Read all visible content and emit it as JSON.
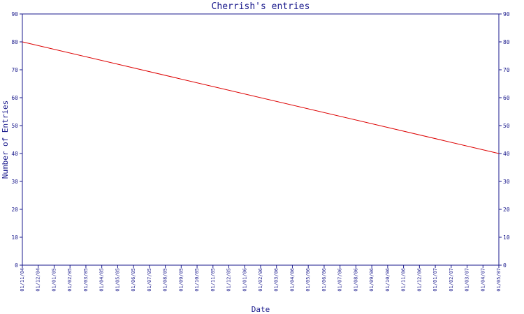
{
  "chart_data": {
    "type": "line",
    "title": "Cherrish's entries",
    "xlabel": "Date",
    "ylabel": "Number of Entries",
    "ylim": [
      0,
      90
    ],
    "y_ticks": [
      0,
      10,
      20,
      30,
      40,
      50,
      60,
      70,
      80,
      90
    ],
    "categories": [
      "01/11/04",
      "01/12/04",
      "01/01/05",
      "01/02/05",
      "01/03/05",
      "01/04/05",
      "01/05/05",
      "01/06/05",
      "01/07/05",
      "01/08/05",
      "01/09/05",
      "01/10/05",
      "01/11/05",
      "01/12/05",
      "01/01/06",
      "01/02/06",
      "01/03/06",
      "01/04/06",
      "01/05/06",
      "01/06/06",
      "01/07/06",
      "01/08/06",
      "01/09/06",
      "01/10/06",
      "01/11/06",
      "01/12/06",
      "01/01/07",
      "01/02/07",
      "01/03/07",
      "01/04/07",
      "01/05/07"
    ],
    "series": [
      {
        "x": [
          "01/11/04",
          "01/05/07"
        ],
        "values": [
          80,
          40
        ],
        "color": "#dd0000"
      }
    ],
    "grid": false,
    "right_axis_mirrored": true,
    "axis_color": "#1a1a8c"
  }
}
